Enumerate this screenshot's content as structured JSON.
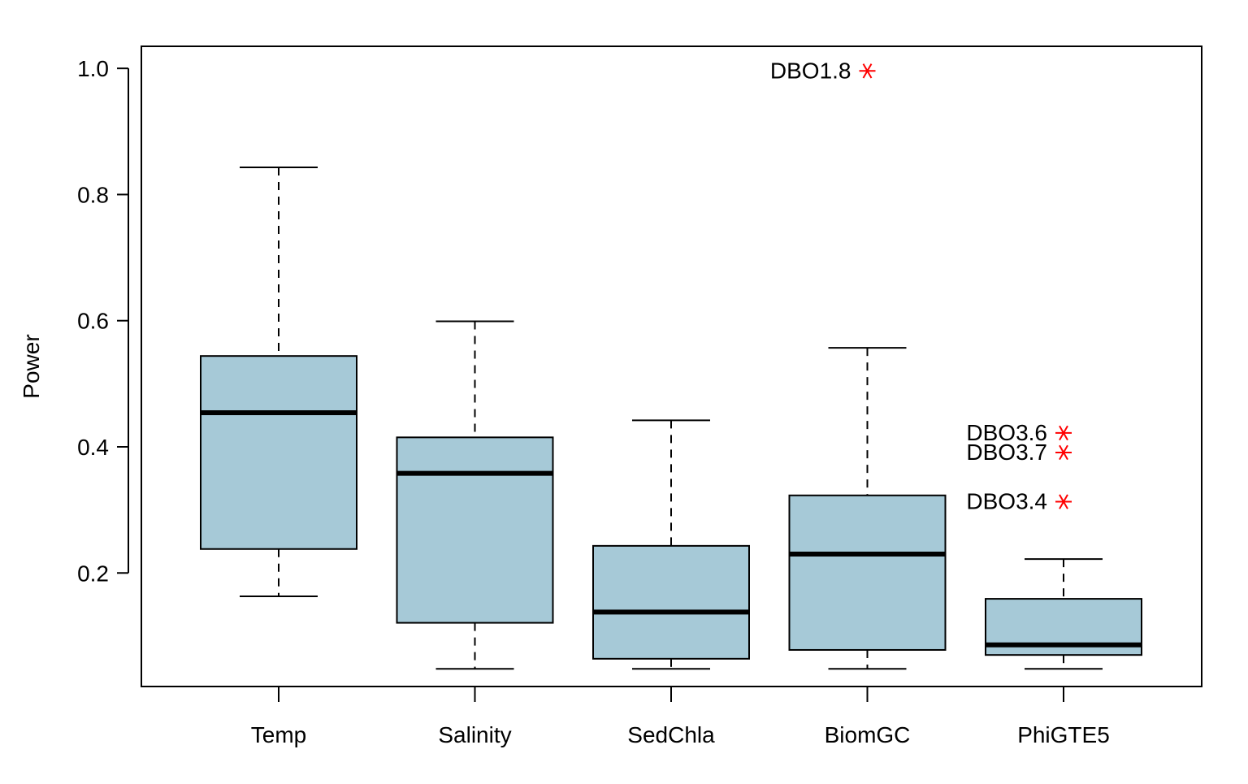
{
  "chart_data": {
    "type": "box",
    "title": "",
    "xlabel": "",
    "ylabel": "Power",
    "ylim": [
      0.02,
      1.035
    ],
    "yticks": [
      0.2,
      0.4,
      0.6,
      0.8,
      1.0
    ],
    "ytick_labels": [
      "0.2",
      "0.4",
      "0.6",
      "0.8",
      "1.0"
    ],
    "grid": false,
    "legend": "none",
    "box_color": "#a6c9d7",
    "outlier_color": "#ff0000",
    "categories": [
      "Temp",
      "Salinity",
      "SedChla",
      "BiomGC",
      "PhiGTE5"
    ],
    "boxes": [
      {
        "whisker_low": 0.163,
        "q1": 0.238,
        "median": 0.454,
        "q3": 0.544,
        "whisker_high": 0.843,
        "outliers": []
      },
      {
        "whisker_low": 0.048,
        "q1": 0.121,
        "median": 0.358,
        "q3": 0.415,
        "whisker_high": 0.599,
        "outliers": []
      },
      {
        "whisker_low": 0.048,
        "q1": 0.064,
        "median": 0.138,
        "q3": 0.243,
        "whisker_high": 0.442,
        "outliers": []
      },
      {
        "whisker_low": 0.048,
        "q1": 0.078,
        "median": 0.23,
        "q3": 0.323,
        "whisker_high": 0.557,
        "outliers": [
          {
            "value": 0.996,
            "label": "DBO1.8"
          }
        ]
      },
      {
        "whisker_low": 0.048,
        "q1": 0.07,
        "median": 0.086,
        "q3": 0.159,
        "whisker_high": 0.222,
        "outliers": [
          {
            "value": 0.422,
            "label": "DBO3.6"
          },
          {
            "value": 0.391,
            "label": "DBO3.7"
          },
          {
            "value": 0.313,
            "label": "DBO3.4"
          }
        ]
      }
    ]
  }
}
